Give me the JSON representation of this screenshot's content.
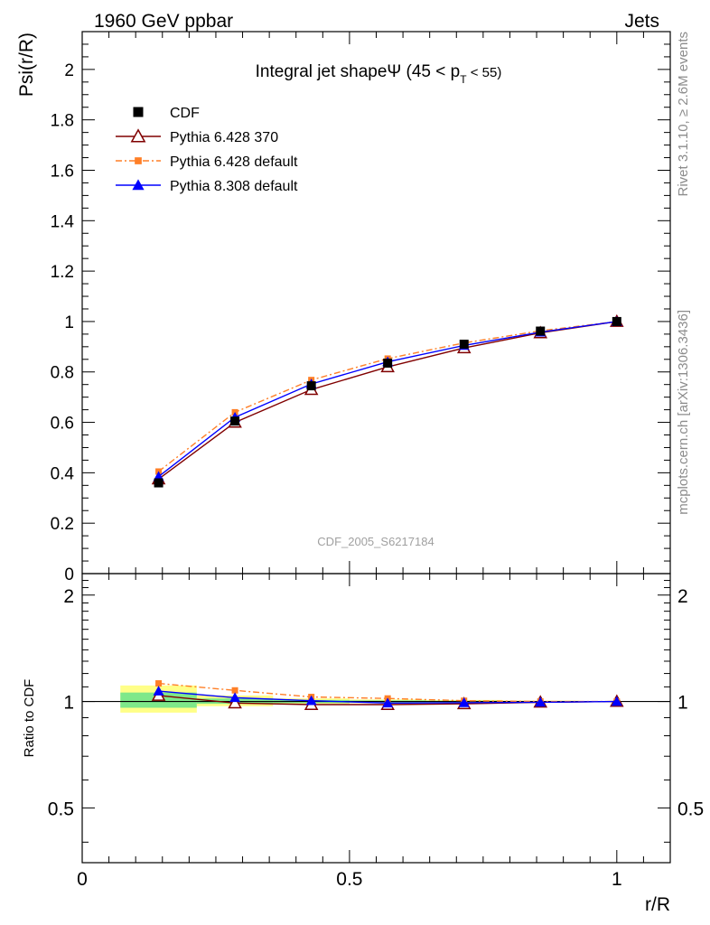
{
  "header": {
    "left": "1960 GeV ppbar",
    "right": "Jets"
  },
  "side_labels": {
    "rivet": "Rivet 3.1.10, ≥ 2.6M events",
    "mcplots": "mcplots.cern.ch [arXiv:1306.3436]"
  },
  "watermark": "CDF_2005_S6217184",
  "chart_data": [
    {
      "type": "line",
      "title": "Integral jet shapeΨ (45 < p",
      "title_sub": "T",
      "title_tail": " < 55)",
      "xlabel": "r/R",
      "ylabel": "Psi(r/R)",
      "xlim": [
        0,
        1.1
      ],
      "ylim": [
        0,
        2.15
      ],
      "yticks": [
        "0",
        "0.2",
        "0.4",
        "0.6",
        "0.8",
        "1",
        "1.2",
        "1.4",
        "1.6",
        "1.8",
        "2"
      ],
      "x": [
        0.1429,
        0.2857,
        0.4286,
        0.5714,
        0.7143,
        0.8571,
        1.0
      ],
      "legend_position": "top-left",
      "series": [
        {
          "name": "CDF",
          "values": [
            0.36,
            0.605,
            0.745,
            0.835,
            0.91,
            0.962,
            1.0
          ],
          "color": "#000000",
          "marker": "square"
        },
        {
          "name": "Pythia 6.428 370",
          "values": [
            0.375,
            0.6,
            0.73,
            0.82,
            0.895,
            0.955,
            1.0
          ],
          "color": "#800000",
          "marker": "open-triangle"
        },
        {
          "name": "Pythia 6.428 default",
          "values": [
            0.405,
            0.64,
            0.768,
            0.853,
            0.915,
            0.963,
            1.0
          ],
          "color": "#ff7f27",
          "marker": "small-square",
          "dash": "dashdot"
        },
        {
          "name": "Pythia 8.308 default",
          "values": [
            0.385,
            0.62,
            0.752,
            0.84,
            0.905,
            0.958,
            1.0
          ],
          "color": "#0000ff",
          "marker": "filled-triangle"
        }
      ]
    },
    {
      "type": "line",
      "ylabel": "Ratio to CDF",
      "xlabel": "r/R",
      "xlim": [
        0,
        1.1
      ],
      "ylim": [
        0.35,
        2.3
      ],
      "yticks": [
        "0.5",
        "1",
        "2"
      ],
      "xticks": [
        "0",
        "0.5",
        "1"
      ],
      "x": [
        0.1429,
        0.2857,
        0.4286,
        0.5714,
        0.7143,
        0.8571,
        1.0
      ],
      "bands": [
        {
          "x0": 0.0714,
          "x1": 0.2143,
          "stat_lo": 0.96,
          "stat_hi": 1.06,
          "tot_lo": 0.93,
          "tot_hi": 1.11
        },
        {
          "x0": 0.2143,
          "x1": 0.3571,
          "stat_lo": 0.985,
          "stat_hi": 1.02,
          "tot_lo": 0.97,
          "tot_hi": 1.04
        },
        {
          "x0": 0.3571,
          "x1": 0.5,
          "stat_lo": 0.99,
          "stat_hi": 1.01,
          "tot_lo": 0.985,
          "tot_hi": 1.02
        },
        {
          "x0": 0.5,
          "x1": 0.6429,
          "stat_lo": 0.993,
          "stat_hi": 1.007,
          "tot_lo": 0.99,
          "tot_hi": 1.013
        },
        {
          "x0": 0.6429,
          "x1": 0.7857,
          "stat_lo": 0.995,
          "stat_hi": 1.005,
          "tot_lo": 0.992,
          "tot_hi": 1.01
        },
        {
          "x0": 0.7857,
          "x1": 0.9286,
          "stat_lo": 0.997,
          "stat_hi": 1.003,
          "tot_lo": 0.995,
          "tot_hi": 1.006
        },
        {
          "x0": 0.9286,
          "x1": 1.0714,
          "stat_lo": 0.999,
          "stat_hi": 1.001,
          "tot_lo": 0.998,
          "tot_hi": 1.002
        }
      ],
      "series": [
        {
          "name": "Pythia 6.428 370",
          "values": [
            1.04,
            0.99,
            0.98,
            0.98,
            0.985,
            0.995,
            1.0
          ],
          "color": "#800000",
          "marker": "open-triangle"
        },
        {
          "name": "Pythia 6.428 default",
          "values": [
            1.125,
            1.075,
            1.03,
            1.02,
            1.005,
            1.0,
            1.0
          ],
          "color": "#ff7f27",
          "marker": "small-square",
          "dash": "dashdot"
        },
        {
          "name": "Pythia 8.308 default",
          "values": [
            1.07,
            1.025,
            1.005,
            0.99,
            0.992,
            0.995,
            1.0
          ],
          "color": "#0000ff",
          "marker": "filled-triangle"
        }
      ]
    }
  ]
}
